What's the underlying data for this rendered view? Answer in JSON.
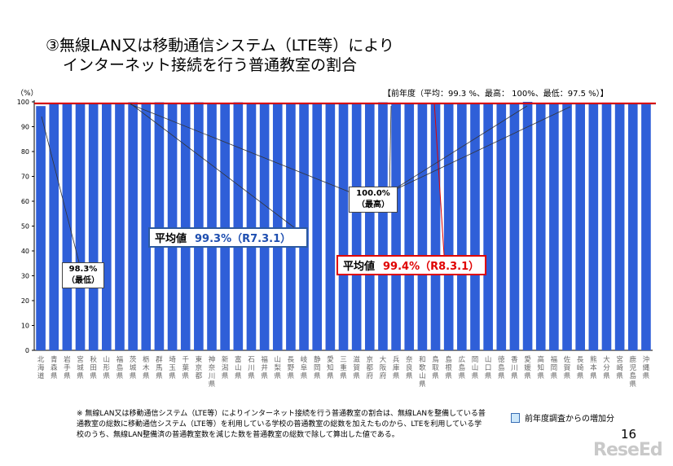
{
  "title": {
    "line1": "③無線LAN又は移動通信システム（LTE等）により",
    "line2": "インターネット接続を行う普通教室の割合"
  },
  "prev_year_label": "【前年度（平均：99.3 %、最高： 100%、最低：97.5 %）】",
  "avg_prev": {
    "label": "平均値",
    "value": "99.3%（R7.3.1）"
  },
  "avg_curr": {
    "label": "平均値",
    "value": "99.4%（R8.3.1）"
  },
  "callout_min": {
    "value": "98.3%",
    "note": "（最低）"
  },
  "callout_max": {
    "value": "100.0%",
    "note": "（最高）"
  },
  "legend_label": "前年度調査からの増加分",
  "footnote": "※ 無線LAN又は移動通信システム（LTE等）によりインターネット接続を行う普通教室の割合は、無線LANを整備している普通教室の総数に移動通信システム（LTE等）を利用している学校の普通教室の総数を加えたものから、LTEを利用している学校のうち、無線LAN整備済の普通教室数を減じた数を普通教室の総数で除して算出した値である。",
  "page_number": "16",
  "logo": "ReseEd",
  "colors": {
    "bar": "#2f5fd8",
    "increase": "#cde8fb",
    "avg_prev_line": "#2c5aa0",
    "avg_curr_line": "#e00000"
  },
  "chart_data": {
    "type": "bar",
    "ylabel": "（%）",
    "ylim": [
      0,
      100
    ],
    "yticks": [
      0,
      10,
      20,
      30,
      40,
      50,
      60,
      70,
      80,
      90,
      100
    ],
    "categories": [
      "北海道",
      "青森県",
      "岩手県",
      "宮城県",
      "秋田県",
      "山形県",
      "福島県",
      "茨城県",
      "栃木県",
      "群馬県",
      "埼玉県",
      "千葉県",
      "東京都",
      "神奈川県",
      "新潟県",
      "富山県",
      "石川県",
      "福井県",
      "山梨県",
      "長野県",
      "岐阜県",
      "静岡県",
      "愛知県",
      "三重県",
      "滋賀県",
      "京都府",
      "大阪府",
      "兵庫県",
      "奈良県",
      "和歌山県",
      "鳥取県",
      "島根県",
      "広島県",
      "岡山県",
      "山口県",
      "徳島県",
      "香川県",
      "愛媛県",
      "高知県",
      "福岡県",
      "佐賀県",
      "長崎県",
      "熊本県",
      "大分県",
      "宮崎県",
      "鹿児島県",
      "沖縄県"
    ],
    "values": [
      98.3,
      99.6,
      99.5,
      99.6,
      99.3,
      99.2,
      99.4,
      99.8,
      99.7,
      99.8,
      99.4,
      99.4,
      99.8,
      99.4,
      99.2,
      99.8,
      99.4,
      99.4,
      99.4,
      99.6,
      99.6,
      99.6,
      99.3,
      99.4,
      99.4,
      99.2,
      99.8,
      99.3,
      99.4,
      99.4,
      99.4,
      99.4,
      99.4,
      99.4,
      99.5,
      99.4,
      99.4,
      100.0,
      99.5,
      99.5,
      99.6,
      99.4,
      99.6,
      99.7,
      99.4,
      99.4,
      99.0
    ],
    "reference_lines": [
      {
        "name": "平均値 R7.3.1",
        "value": 99.3
      },
      {
        "name": "平均値 R8.3.1",
        "value": 99.4
      }
    ]
  }
}
